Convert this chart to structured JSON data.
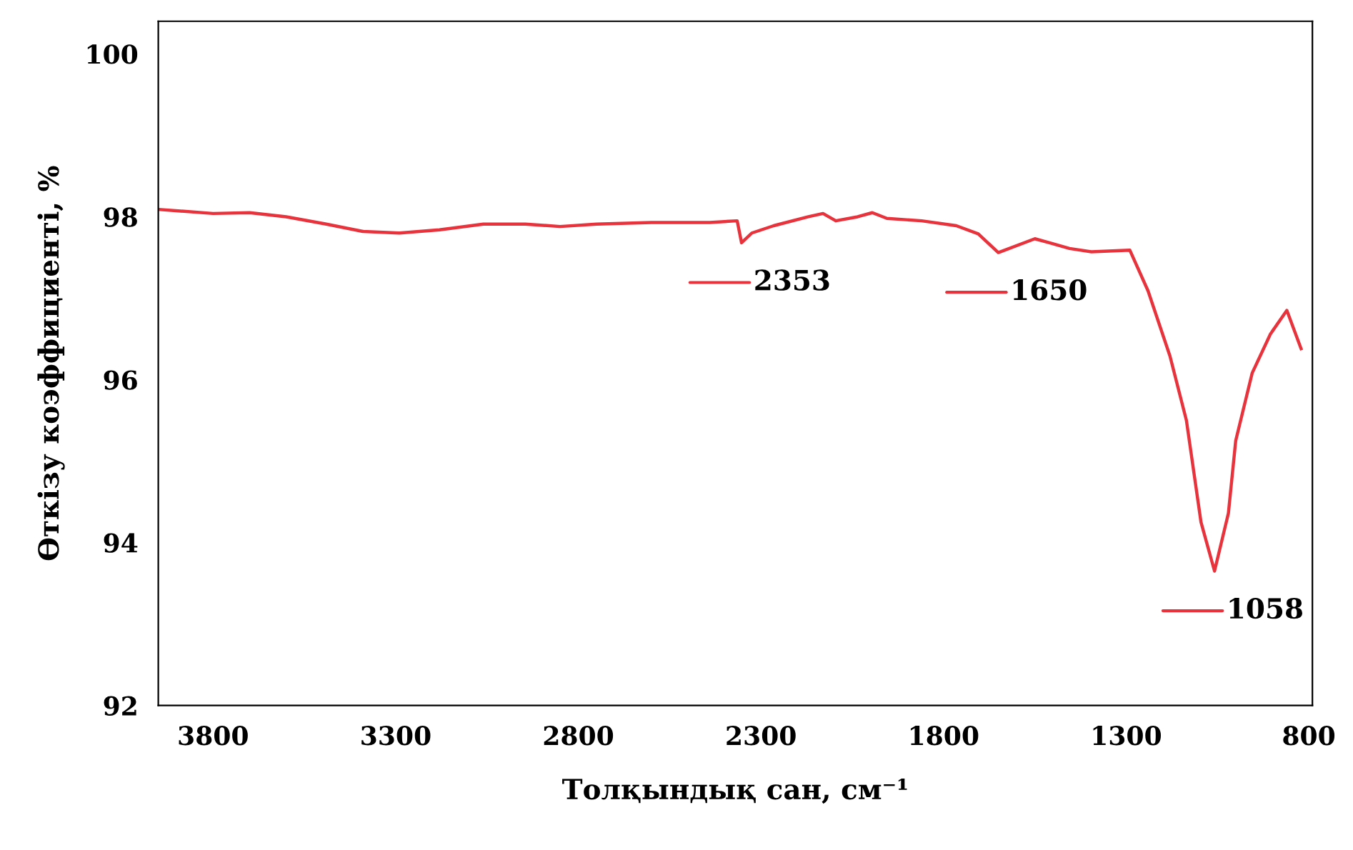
{
  "chart_data": {
    "type": "line",
    "xlabel": "Толқындық сан, см⁻¹",
    "ylabel": "Өткізу коэффициенті, %",
    "xlim": [
      3950,
      790
    ],
    "xticks": [
      3800,
      3300,
      2800,
      2300,
      1800,
      1300,
      800
    ],
    "ylim": [
      92,
      100.4
    ],
    "yticks": [
      92,
      94,
      96,
      98,
      100
    ],
    "grid": false,
    "legend": false,
    "marker": "none",
    "line_style": "solid",
    "x": [
      3950,
      3800,
      3700,
      3600,
      3490,
      3390,
      3290,
      3180,
      3060,
      2945,
      2850,
      2750,
      2600,
      2440,
      2365,
      2353,
      2325,
      2265,
      2170,
      2130,
      2095,
      2035,
      1995,
      1955,
      1860,
      1765,
      1705,
      1650,
      1550,
      1510,
      1455,
      1395,
      1290,
      1240,
      1180,
      1135,
      1095,
      1058,
      1020,
      1000,
      955,
      905,
      860,
      821
    ],
    "series": [
      {
        "color": "#e8323c",
        "values": [
          98.09,
          98.04,
          98.05,
          98.0,
          97.91,
          97.82,
          97.8,
          97.84,
          97.91,
          97.91,
          97.88,
          97.91,
          97.93,
          97.93,
          97.95,
          97.68,
          97.8,
          97.89,
          98.0,
          98.04,
          97.95,
          98.0,
          98.05,
          97.98,
          97.95,
          97.89,
          97.79,
          97.56,
          97.73,
          97.68,
          97.61,
          97.57,
          97.59,
          97.09,
          96.29,
          95.5,
          94.25,
          93.65,
          94.36,
          95.25,
          96.08,
          96.56,
          96.85,
          96.38
        ]
      }
    ],
    "annotations": [
      {
        "text": "2353",
        "x": 2353,
        "y": 97.68
      },
      {
        "text": "1650",
        "x": 1650,
        "y": 97.56
      },
      {
        "text": "1058",
        "x": 1058,
        "y": 93.65
      }
    ]
  }
}
